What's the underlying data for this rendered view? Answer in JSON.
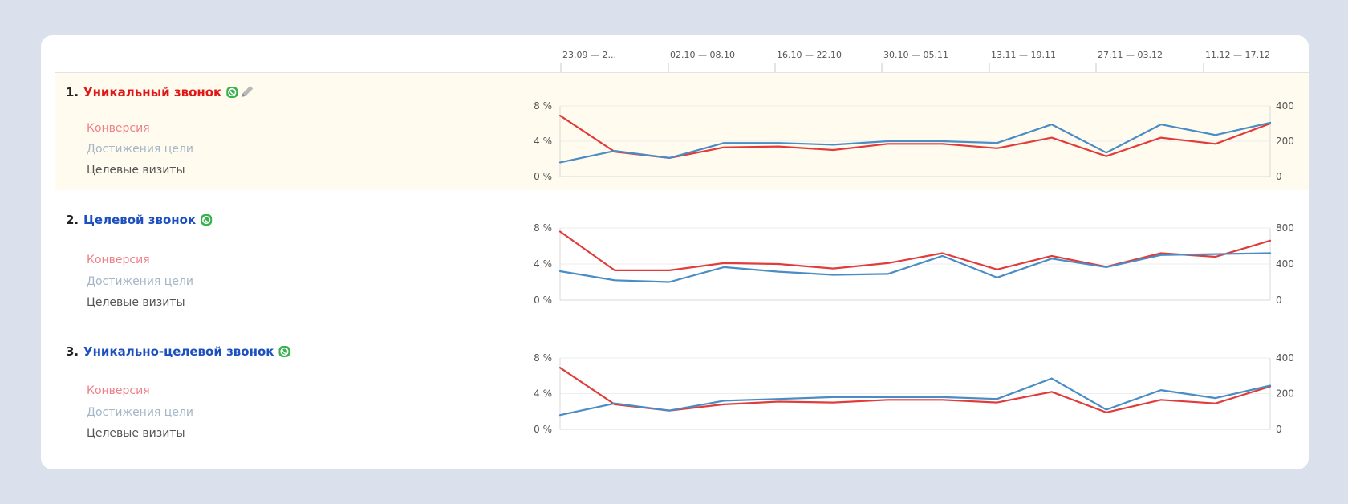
{
  "colors": {
    "red_series": "#e03c3c",
    "blue_series": "#4a8cc4",
    "highlight_row": "#fffbee",
    "goal_title_red": "#e01818",
    "goal_title_blue": "#1c4fc0",
    "metric_conversion": "#ef7f86",
    "metric_reaches": "#a5b6c8",
    "metric_visits": "#555555",
    "phone_badge": "#37b24d"
  },
  "timeline": [
    "23.09 — 2...",
    "02.10 — 08.10",
    "16.10 — 22.10",
    "30.10 — 05.11",
    "13.11 — 19.11",
    "27.11 — 03.12",
    "11.12 — 17.12"
  ],
  "metric_labels": {
    "conversion": "Конверсия",
    "reaches": "Достижения цели",
    "visits": "Целевые визиты"
  },
  "chart_data": [
    {
      "type": "line",
      "goal_number": "1.",
      "goal_title": "Уникальный звонок",
      "title_color": "red",
      "editable_icon": "pencil-icon",
      "badge_icon": "phone-icon",
      "left_axis_ticks": [
        "8 %",
        "4 %",
        "0 %"
      ],
      "right_axis_ticks": [
        "400",
        "200",
        "0"
      ],
      "left_ylim": [
        0,
        8
      ],
      "right_ylim": [
        0,
        400
      ],
      "series": [
        {
          "axis": "left",
          "color": "red",
          "values": [
            6.9,
            2.8,
            2.1,
            3.3,
            3.4,
            3.0,
            3.7,
            3.7,
            3.2,
            4.4,
            2.3,
            4.4,
            3.7,
            6.0
          ]
        },
        {
          "axis": "right",
          "color": "blue",
          "values": [
            80,
            145,
            105,
            190,
            190,
            180,
            200,
            200,
            190,
            295,
            135,
            295,
            235,
            305
          ]
        }
      ]
    },
    {
      "type": "line",
      "goal_number": "2.",
      "goal_title": "Целевой звонок",
      "title_color": "blue",
      "badge_icon": "phone-icon",
      "left_axis_ticks": [
        "8 %",
        "4 %",
        "0 %"
      ],
      "right_axis_ticks": [
        "800",
        "400",
        "0"
      ],
      "left_ylim": [
        0,
        8
      ],
      "right_ylim": [
        0,
        800
      ],
      "series": [
        {
          "axis": "left",
          "color": "red",
          "values": [
            7.6,
            3.3,
            3.3,
            4.1,
            4.0,
            3.5,
            4.1,
            5.2,
            3.4,
            4.9,
            3.7,
            5.2,
            4.8,
            6.6
          ]
        },
        {
          "axis": "right",
          "color": "blue",
          "values": [
            320,
            220,
            200,
            365,
            315,
            280,
            290,
            490,
            250,
            460,
            365,
            500,
            510,
            520
          ]
        }
      ]
    },
    {
      "type": "line",
      "goal_number": "3.",
      "goal_title": "Уникально-целевой звонок",
      "title_color": "blue",
      "badge_icon": "phone-icon",
      "left_axis_ticks": [
        "8 %",
        "4 %",
        "0 %"
      ],
      "right_axis_ticks": [
        "400",
        "200",
        "0"
      ],
      "left_ylim": [
        0,
        8
      ],
      "right_ylim": [
        0,
        400
      ],
      "series": [
        {
          "axis": "left",
          "color": "red",
          "values": [
            6.9,
            2.8,
            2.1,
            2.8,
            3.1,
            3.0,
            3.3,
            3.3,
            3.0,
            4.2,
            1.9,
            3.3,
            2.9,
            4.8
          ]
        },
        {
          "axis": "right",
          "color": "blue",
          "values": [
            80,
            145,
            105,
            160,
            170,
            180,
            180,
            180,
            170,
            285,
            110,
            220,
            175,
            245
          ]
        }
      ]
    }
  ]
}
